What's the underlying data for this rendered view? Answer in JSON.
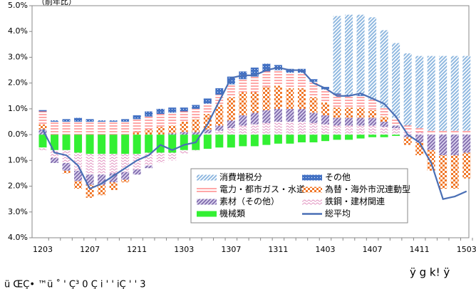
{
  "chart_data": {
    "type": "bar",
    "subtitle": "（前年比）",
    "categories": [
      "1203",
      null,
      null,
      null,
      "1207",
      null,
      null,
      null,
      "1211",
      null,
      null,
      null,
      "1303",
      null,
      null,
      null,
      "1307",
      null,
      null,
      null,
      "1311",
      null,
      null,
      null,
      "1403",
      null,
      null,
      null,
      "1407",
      null,
      null,
      null,
      "1411",
      null,
      null,
      null,
      "1503"
    ],
    "series": [
      {
        "name": "消費増税分",
        "color": "#8fb8e0",
        "values": [
          0,
          0,
          0,
          0,
          0,
          0,
          0,
          0,
          0,
          0,
          0,
          0,
          0,
          0,
          0,
          0,
          0,
          0,
          0,
          0,
          0,
          0,
          0,
          0,
          0,
          3.0,
          3.1,
          3.1,
          3.2,
          3.0,
          2.9,
          2.8,
          2.8,
          2.9,
          2.9,
          2.9,
          2.9
        ]
      },
      {
        "name": "その他",
        "color": "#4472c4",
        "values": [
          0.05,
          0.05,
          0.1,
          0.15,
          0.1,
          0.05,
          0.05,
          0.1,
          0.15,
          0.2,
          0.2,
          0.2,
          0.15,
          0.15,
          0.2,
          0.25,
          0.3,
          0.3,
          0.35,
          0.3,
          0.2,
          0.15,
          0.15,
          0.1,
          0.1,
          0.05,
          0.05,
          0.05,
          0,
          0,
          0,
          0,
          0,
          0,
          0,
          0,
          0
        ]
      },
      {
        "name": "電力・都市ガス・水道",
        "color": "#ff6f6f",
        "values": [
          0.5,
          0.5,
          0.5,
          0.5,
          0.5,
          0.5,
          0.5,
          0.5,
          0.5,
          0.5,
          0.5,
          0.5,
          0.4,
          0.4,
          0.4,
          0.4,
          0.5,
          0.5,
          0.6,
          0.6,
          0.6,
          0.6,
          0.6,
          0.6,
          0.5,
          0.5,
          0.45,
          0.45,
          0.4,
          0.35,
          0.3,
          0.2,
          0.15,
          0.1,
          0.1,
          0.1,
          0.1
        ]
      },
      {
        "name": "為替・海外市況連動型",
        "color": "#f0782a",
        "values": [
          0.2,
          0,
          -0.1,
          -0.3,
          -0.5,
          -0.4,
          -0.3,
          -0.1,
          0.1,
          0.2,
          0.3,
          0.3,
          0.4,
          0.5,
          0.6,
          0.8,
          0.9,
          0.9,
          0.8,
          0.9,
          0.9,
          0.8,
          0.8,
          0.6,
          0.5,
          0.4,
          0.4,
          0.4,
          0.3,
          0.2,
          0,
          -0.3,
          -0.5,
          -0.8,
          -1.3,
          -1.3,
          -1.0
        ]
      },
      {
        "name": "素材（その他）",
        "color": "#7a64a8",
        "values": [
          0.2,
          -0.2,
          -0.3,
          -0.4,
          -0.4,
          -0.4,
          -0.35,
          -0.3,
          -0.2,
          -0.1,
          0,
          0.05,
          0.1,
          0.1,
          0.15,
          0.2,
          0.3,
          0.4,
          0.45,
          0.5,
          0.5,
          0.5,
          0.5,
          0.4,
          0.35,
          0.3,
          0.3,
          0.3,
          0.3,
          0.2,
          0.1,
          -0.1,
          -0.3,
          -0.6,
          -0.8,
          -0.8,
          -0.7
        ]
      },
      {
        "name": "鉄鋼・建材関連",
        "color": "#e08cbc",
        "values": [
          -0.1,
          -0.3,
          -0.5,
          -0.7,
          -0.8,
          -0.8,
          -0.75,
          -0.7,
          -0.6,
          -0.5,
          -0.4,
          -0.3,
          -0.15,
          -0.05,
          0.05,
          0.15,
          0.25,
          0.35,
          0.4,
          0.45,
          0.5,
          0.5,
          0.5,
          0.45,
          0.4,
          0.35,
          0.35,
          0.35,
          0.35,
          0.3,
          0.25,
          0.15,
          0.1,
          0.05,
          0.05,
          0.05,
          0.05
        ]
      },
      {
        "name": "機械類",
        "color": "#33f033",
        "values": [
          -0.5,
          -0.6,
          -0.6,
          -0.7,
          -0.75,
          -0.75,
          -0.75,
          -0.75,
          -0.75,
          -0.7,
          -0.7,
          -0.7,
          -0.6,
          -0.6,
          -0.55,
          -0.5,
          -0.5,
          -0.45,
          -0.45,
          -0.4,
          -0.35,
          -0.35,
          -0.3,
          -0.3,
          -0.25,
          -0.2,
          -0.2,
          -0.15,
          -0.1,
          -0.1,
          -0.05,
          0,
          0,
          0,
          0,
          0,
          0
        ]
      },
      {
        "name": "総平均",
        "type": "line",
        "color": "#4a6fb5",
        "values": [
          0.2,
          -0.7,
          -0.8,
          -1.2,
          -2.1,
          -1.9,
          -1.6,
          -1.3,
          -1.0,
          -0.8,
          -0.4,
          -0.6,
          -0.4,
          -0.3,
          0.4,
          1.3,
          2.2,
          2.3,
          2.3,
          2.5,
          2.6,
          2.5,
          2.5,
          2.0,
          1.8,
          1.5,
          1.5,
          1.6,
          1.4,
          1.2,
          0.7,
          0,
          -0.3,
          -1.1,
          -2.5,
          -2.4,
          -2.2
        ]
      }
    ],
    "ylim": [
      -4,
      5
    ],
    "yticks": [
      {
        "value": 5,
        "label": "5.0%"
      },
      {
        "value": 4,
        "label": "4.0%"
      },
      {
        "value": 3,
        "label": "3.0%"
      },
      {
        "value": 2,
        "label": "2.0%"
      },
      {
        "value": 1,
        "label": "1.0%"
      },
      {
        "value": 0,
        "label": "0.0%"
      },
      {
        "value": -1,
        "label": "1.0%"
      },
      {
        "value": -2,
        "label": "2.0%"
      },
      {
        "value": -3,
        "label": "3.0%"
      },
      {
        "value": -4,
        "label": "4.0%"
      }
    ],
    "legend": "inside-bottom-center",
    "notes": [
      "ÿ g k! ÿ",
      "ü ŒÇ• ™ü ˚ ' Ç³ 0 Ç i ' ' iÇ ' ' 3"
    ]
  }
}
